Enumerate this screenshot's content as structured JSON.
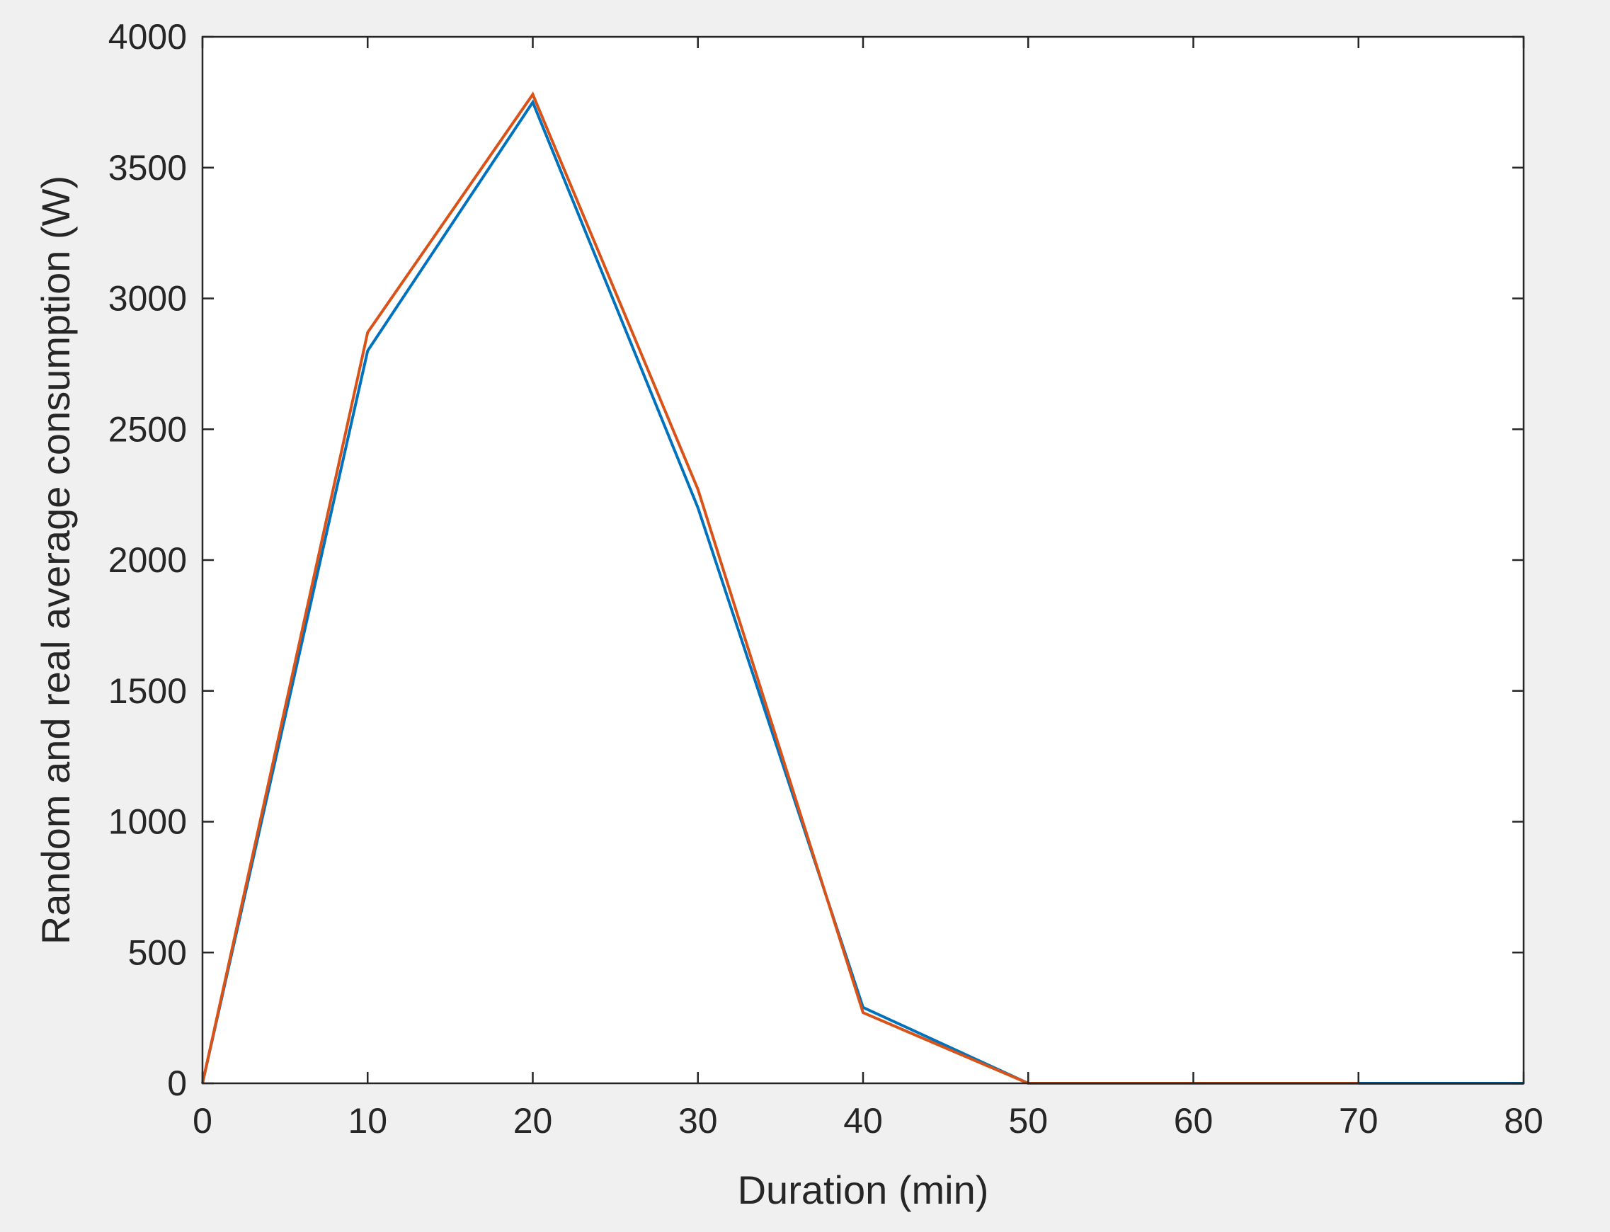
{
  "chart_data": {
    "type": "line",
    "title": "",
    "xlabel": "Duration (min)",
    "ylabel": "Random and real average consumption (W)",
    "xlim": [
      0,
      80
    ],
    "ylim": [
      0,
      4000
    ],
    "xticks": [
      0,
      10,
      20,
      30,
      40,
      50,
      60,
      70,
      80
    ],
    "yticks": [
      0,
      500,
      1000,
      1500,
      2000,
      2500,
      3000,
      3500,
      4000
    ],
    "grid": false,
    "legend": "none",
    "colors": {
      "figure_background": "#f0f0f0",
      "axes_background": "#ffffff",
      "axis": "#262626"
    },
    "series": [
      {
        "color": "#0072bd",
        "x": [
          0,
          10,
          20,
          30,
          40,
          50,
          60,
          70,
          80
        ],
        "y": [
          0,
          2800,
          3750,
          2200,
          290,
          0,
          0,
          0,
          0
        ]
      },
      {
        "color": "#d95319",
        "x": [
          0,
          10,
          20,
          30,
          40,
          50,
          60,
          70
        ],
        "y": [
          0,
          2870,
          3780,
          2270,
          270,
          0,
          0,
          0
        ]
      }
    ]
  }
}
